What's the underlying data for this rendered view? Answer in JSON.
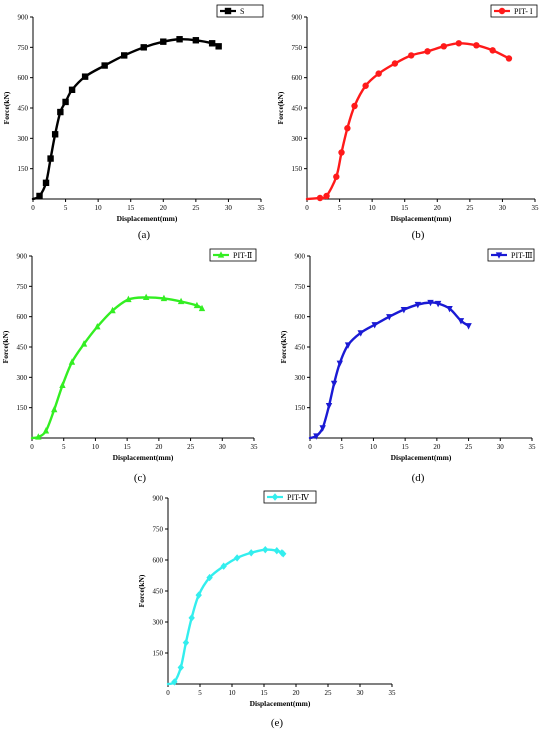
{
  "chart_data": [
    {
      "type": "line",
      "panel": "(a)",
      "xlabel": "Displacement(mm)",
      "ylabel": "Force(kN)",
      "xlim": [
        0,
        35
      ],
      "ylim": [
        0,
        900
      ],
      "xticks": [
        "0",
        "5",
        "10",
        "15",
        "20",
        "25",
        "30",
        "35"
      ],
      "yticks": [
        "150",
        "300",
        "450",
        "600",
        "750",
        "900"
      ],
      "legend_position": "top-right",
      "series": [
        {
          "name": "S",
          "color": "#000000",
          "marker": "square",
          "x": [
            0,
            1,
            2,
            2.7,
            3.4,
            4.2,
            5,
            6,
            8,
            11,
            14,
            17,
            20,
            22.5,
            25,
            27.5,
            28.5
          ],
          "y": [
            0,
            15,
            80,
            200,
            320,
            430,
            480,
            540,
            605,
            660,
            710,
            750,
            778,
            790,
            785,
            770,
            755
          ]
        }
      ]
    },
    {
      "type": "line",
      "panel": "(b)",
      "xlabel": "Displacement(mm)",
      "ylabel": "Force(kN)",
      "xlim": [
        0,
        35
      ],
      "ylim": [
        0,
        900
      ],
      "xticks": [
        "0",
        "5",
        "10",
        "15",
        "20",
        "25",
        "30",
        "35"
      ],
      "yticks": [
        "150",
        "300",
        "450",
        "600",
        "750",
        "900"
      ],
      "legend_position": "top-right",
      "series": [
        {
          "name": "PIT- I",
          "color": "#ff1a1a",
          "marker": "circle",
          "x": [
            0,
            2,
            3,
            4.5,
            5.3,
            6.2,
            7.3,
            9,
            11,
            13.5,
            16,
            18.5,
            21,
            23.3,
            26,
            28.5,
            31
          ],
          "y": [
            0,
            5,
            15,
            110,
            230,
            350,
            460,
            560,
            620,
            670,
            710,
            730,
            755,
            770,
            760,
            735,
            695
          ]
        }
      ]
    },
    {
      "type": "line",
      "panel": "(c)",
      "xlabel": "Displacement(mm)",
      "ylabel": "Force(kN)",
      "xlim": [
        0,
        35
      ],
      "ylim": [
        0,
        900
      ],
      "xticks": [
        "0",
        "5",
        "10",
        "15",
        "20",
        "25",
        "30",
        "35"
      ],
      "yticks": [
        "150",
        "300",
        "450",
        "600",
        "750",
        "900"
      ],
      "legend_position": "top-right",
      "series": [
        {
          "name": "PIT-Ⅱ",
          "color": "#33ee22",
          "marker": "triangle-up",
          "x": [
            0,
            1,
            2.2,
            3.5,
            4.8,
            6.3,
            8.2,
            10.3,
            12.7,
            15.2,
            18,
            20.8,
            23.5,
            26,
            26.8
          ],
          "y": [
            0,
            5,
            35,
            140,
            260,
            375,
            465,
            550,
            630,
            685,
            695,
            690,
            675,
            655,
            640
          ]
        }
      ]
    },
    {
      "type": "line",
      "panel": "(d)",
      "xlabel": "Displacement(mm)",
      "ylabel": "Force(kN)",
      "xlim": [
        0,
        35
      ],
      "ylim": [
        0,
        900
      ],
      "xticks": [
        "0",
        "5",
        "10",
        "15",
        "20",
        "25",
        "30",
        "35"
      ],
      "yticks": [
        "150",
        "300",
        "450",
        "600",
        "750",
        "900"
      ],
      "legend_position": "top-right",
      "series": [
        {
          "name": "PIT-Ⅲ",
          "color": "#1a1ad4",
          "marker": "triangle-down",
          "x": [
            0,
            1,
            2,
            3,
            3.8,
            4.7,
            6,
            8,
            10.2,
            12.5,
            14.8,
            17,
            19,
            20.2,
            22,
            23.8,
            25
          ],
          "y": [
            0,
            10,
            50,
            160,
            270,
            370,
            460,
            520,
            560,
            600,
            635,
            660,
            670,
            665,
            640,
            580,
            555
          ]
        }
      ]
    },
    {
      "type": "line",
      "panel": "(e)",
      "xlabel": "Displacement(mm)",
      "ylabel": "Force(kN)",
      "xlim": [
        0,
        35
      ],
      "ylim": [
        0,
        900
      ],
      "xticks": [
        "0",
        "5",
        "10",
        "15",
        "20",
        "25",
        "30",
        "35"
      ],
      "yticks": [
        "150",
        "300",
        "450",
        "600",
        "750",
        "900"
      ],
      "legend_position": "top-center",
      "series": [
        {
          "name": "PIT-Ⅳ",
          "color": "#33eeee",
          "marker": "diamond",
          "x": [
            0,
            1,
            2,
            2.8,
            3.7,
            4.8,
            6.5,
            8.7,
            10.8,
            13,
            15.2,
            17,
            17.8,
            18
          ],
          "y": [
            0,
            10,
            80,
            200,
            320,
            430,
            515,
            570,
            610,
            635,
            650,
            645,
            635,
            630
          ]
        }
      ]
    }
  ]
}
